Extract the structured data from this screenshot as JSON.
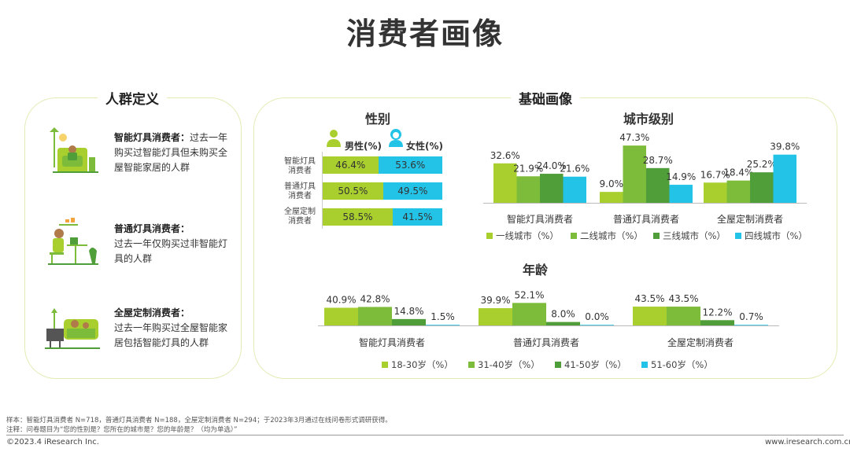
{
  "title": "消费者画像",
  "left_panel": {
    "title": "人群定义",
    "items": [
      {
        "head": "智能灯具消费者：",
        "body": "过去一年购买过智能灯具但未购买全屋智能家居的人群"
      },
      {
        "head": "普通灯具消费者：",
        "body": "过去一年仅购买过非智能灯具的人群"
      },
      {
        "head": "全屋定制消费者：",
        "body": "过去一年购买过全屋智能家居包括智能灯具的人群"
      }
    ]
  },
  "right_panel": {
    "title": "基础画像"
  },
  "colors": {
    "light_green": "#a8cf2e",
    "mid_green": "#7dbc3b",
    "dark_green": "#4f9e3a",
    "cyan": "#23c3e8",
    "panel_border": "#e3ebb5"
  },
  "chart_data": [
    {
      "type": "bar",
      "title": "性别",
      "orientation": "horizontal-stacked",
      "categories": [
        "智能灯具消费者",
        "普通灯具消费者",
        "全屋定制消费者"
      ],
      "series": [
        {
          "name": "男性(%)",
          "values": [
            46.4,
            50.5,
            58.5
          ],
          "labels": [
            "46.4%",
            "50.5%",
            "58.5%"
          ]
        },
        {
          "name": "女性(%)",
          "values": [
            53.6,
            49.5,
            41.5
          ],
          "labels": [
            "53.6%",
            "49.5%",
            "41.5%"
          ]
        }
      ]
    },
    {
      "type": "bar",
      "title": "城市级别",
      "categories": [
        "智能灯具消费者",
        "普通灯具消费者",
        "全屋定制消费者"
      ],
      "series": [
        {
          "name": "一线城市（%）",
          "values": [
            32.6,
            9.0,
            16.7
          ],
          "labels": [
            "32.6%",
            "9.0%",
            "16.7%"
          ]
        },
        {
          "name": "二线城市（%）",
          "values": [
            21.9,
            47.3,
            18.4
          ],
          "labels": [
            "21.9%",
            "47.3%",
            "18.4%"
          ]
        },
        {
          "name": "三线城市（%）",
          "values": [
            24.0,
            28.7,
            25.2
          ],
          "labels": [
            "24.0%",
            "28.7%",
            "25.2%"
          ]
        },
        {
          "name": "四线城市（%）",
          "values": [
            21.6,
            14.9,
            39.8
          ],
          "labels": [
            "21.6%",
            "14.9%",
            "39.8%"
          ]
        }
      ],
      "ylim": [
        0,
        50
      ]
    },
    {
      "type": "bar",
      "title": "年龄",
      "categories": [
        "智能灯具消费者",
        "普通灯具消费者",
        "全屋定制消费者"
      ],
      "series": [
        {
          "name": "18-30岁（%）",
          "values": [
            40.9,
            39.9,
            43.5
          ],
          "labels": [
            "40.9%",
            "39.9%",
            "43.5%"
          ]
        },
        {
          "name": "31-40岁（%）",
          "values": [
            42.8,
            52.1,
            43.5
          ],
          "labels": [
            "42.8%",
            "52.1%",
            "43.5%"
          ]
        },
        {
          "name": "41-50岁（%）",
          "values": [
            14.8,
            8.0,
            12.2
          ],
          "labels": [
            "14.8%",
            "8.0%",
            "12.2%"
          ]
        },
        {
          "name": "51-60岁（%）",
          "values": [
            1.5,
            0.0,
            0.7
          ],
          "labels": [
            "1.5%",
            "0.0%",
            "0.7%"
          ]
        }
      ],
      "ylim": [
        0,
        55
      ]
    }
  ],
  "footer": {
    "sample": "样本：智能灯具消费者 N=718，普通灯具消费者 N=188，全屋定制消费者 N=294；于2023年3月通过在线问卷形式调研获得。",
    "note": "注释：问卷题目为“您的性别是？您所在的城市是？您的年龄是？（均为单选）”",
    "copyright": "©2023.4 iResearch Inc.",
    "website": "www.iresearch.com.cn"
  }
}
